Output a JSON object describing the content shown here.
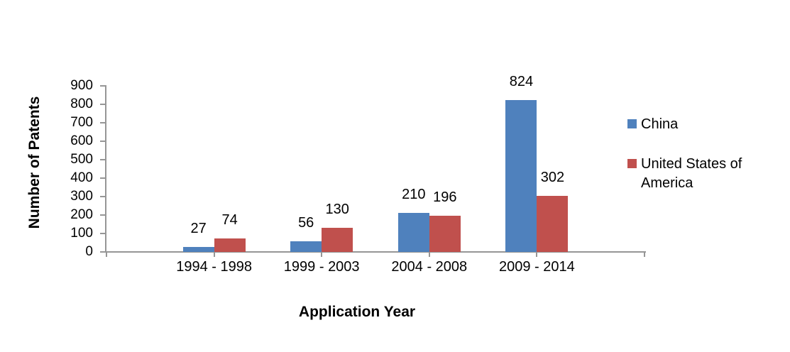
{
  "chart_data": {
    "type": "bar",
    "title": "",
    "categories": [
      "1994 - 1998",
      "1999 - 2003",
      "2004 - 2008",
      "2009 - 2014"
    ],
    "series": [
      {
        "name": "China",
        "color": "#4F81BD",
        "values": [
          27,
          56,
          210,
          824
        ]
      },
      {
        "name": "United States of America",
        "color": "#C0504D",
        "values": [
          74,
          130,
          196,
          302
        ]
      }
    ],
    "data_labels_shown": true,
    "xlabel": "Application Year",
    "ylabel": "Number of Patents",
    "ylim": [
      0,
      900
    ],
    "ytick_step": 100,
    "ytick_labels": [
      "0",
      "100",
      "200",
      "300",
      "400",
      "500",
      "600",
      "700",
      "800",
      "900"
    ],
    "grid": false,
    "legend_position": "right",
    "axis_color": "#969696",
    "text_color": "#000000",
    "background_color": "#FFFFFF"
  }
}
